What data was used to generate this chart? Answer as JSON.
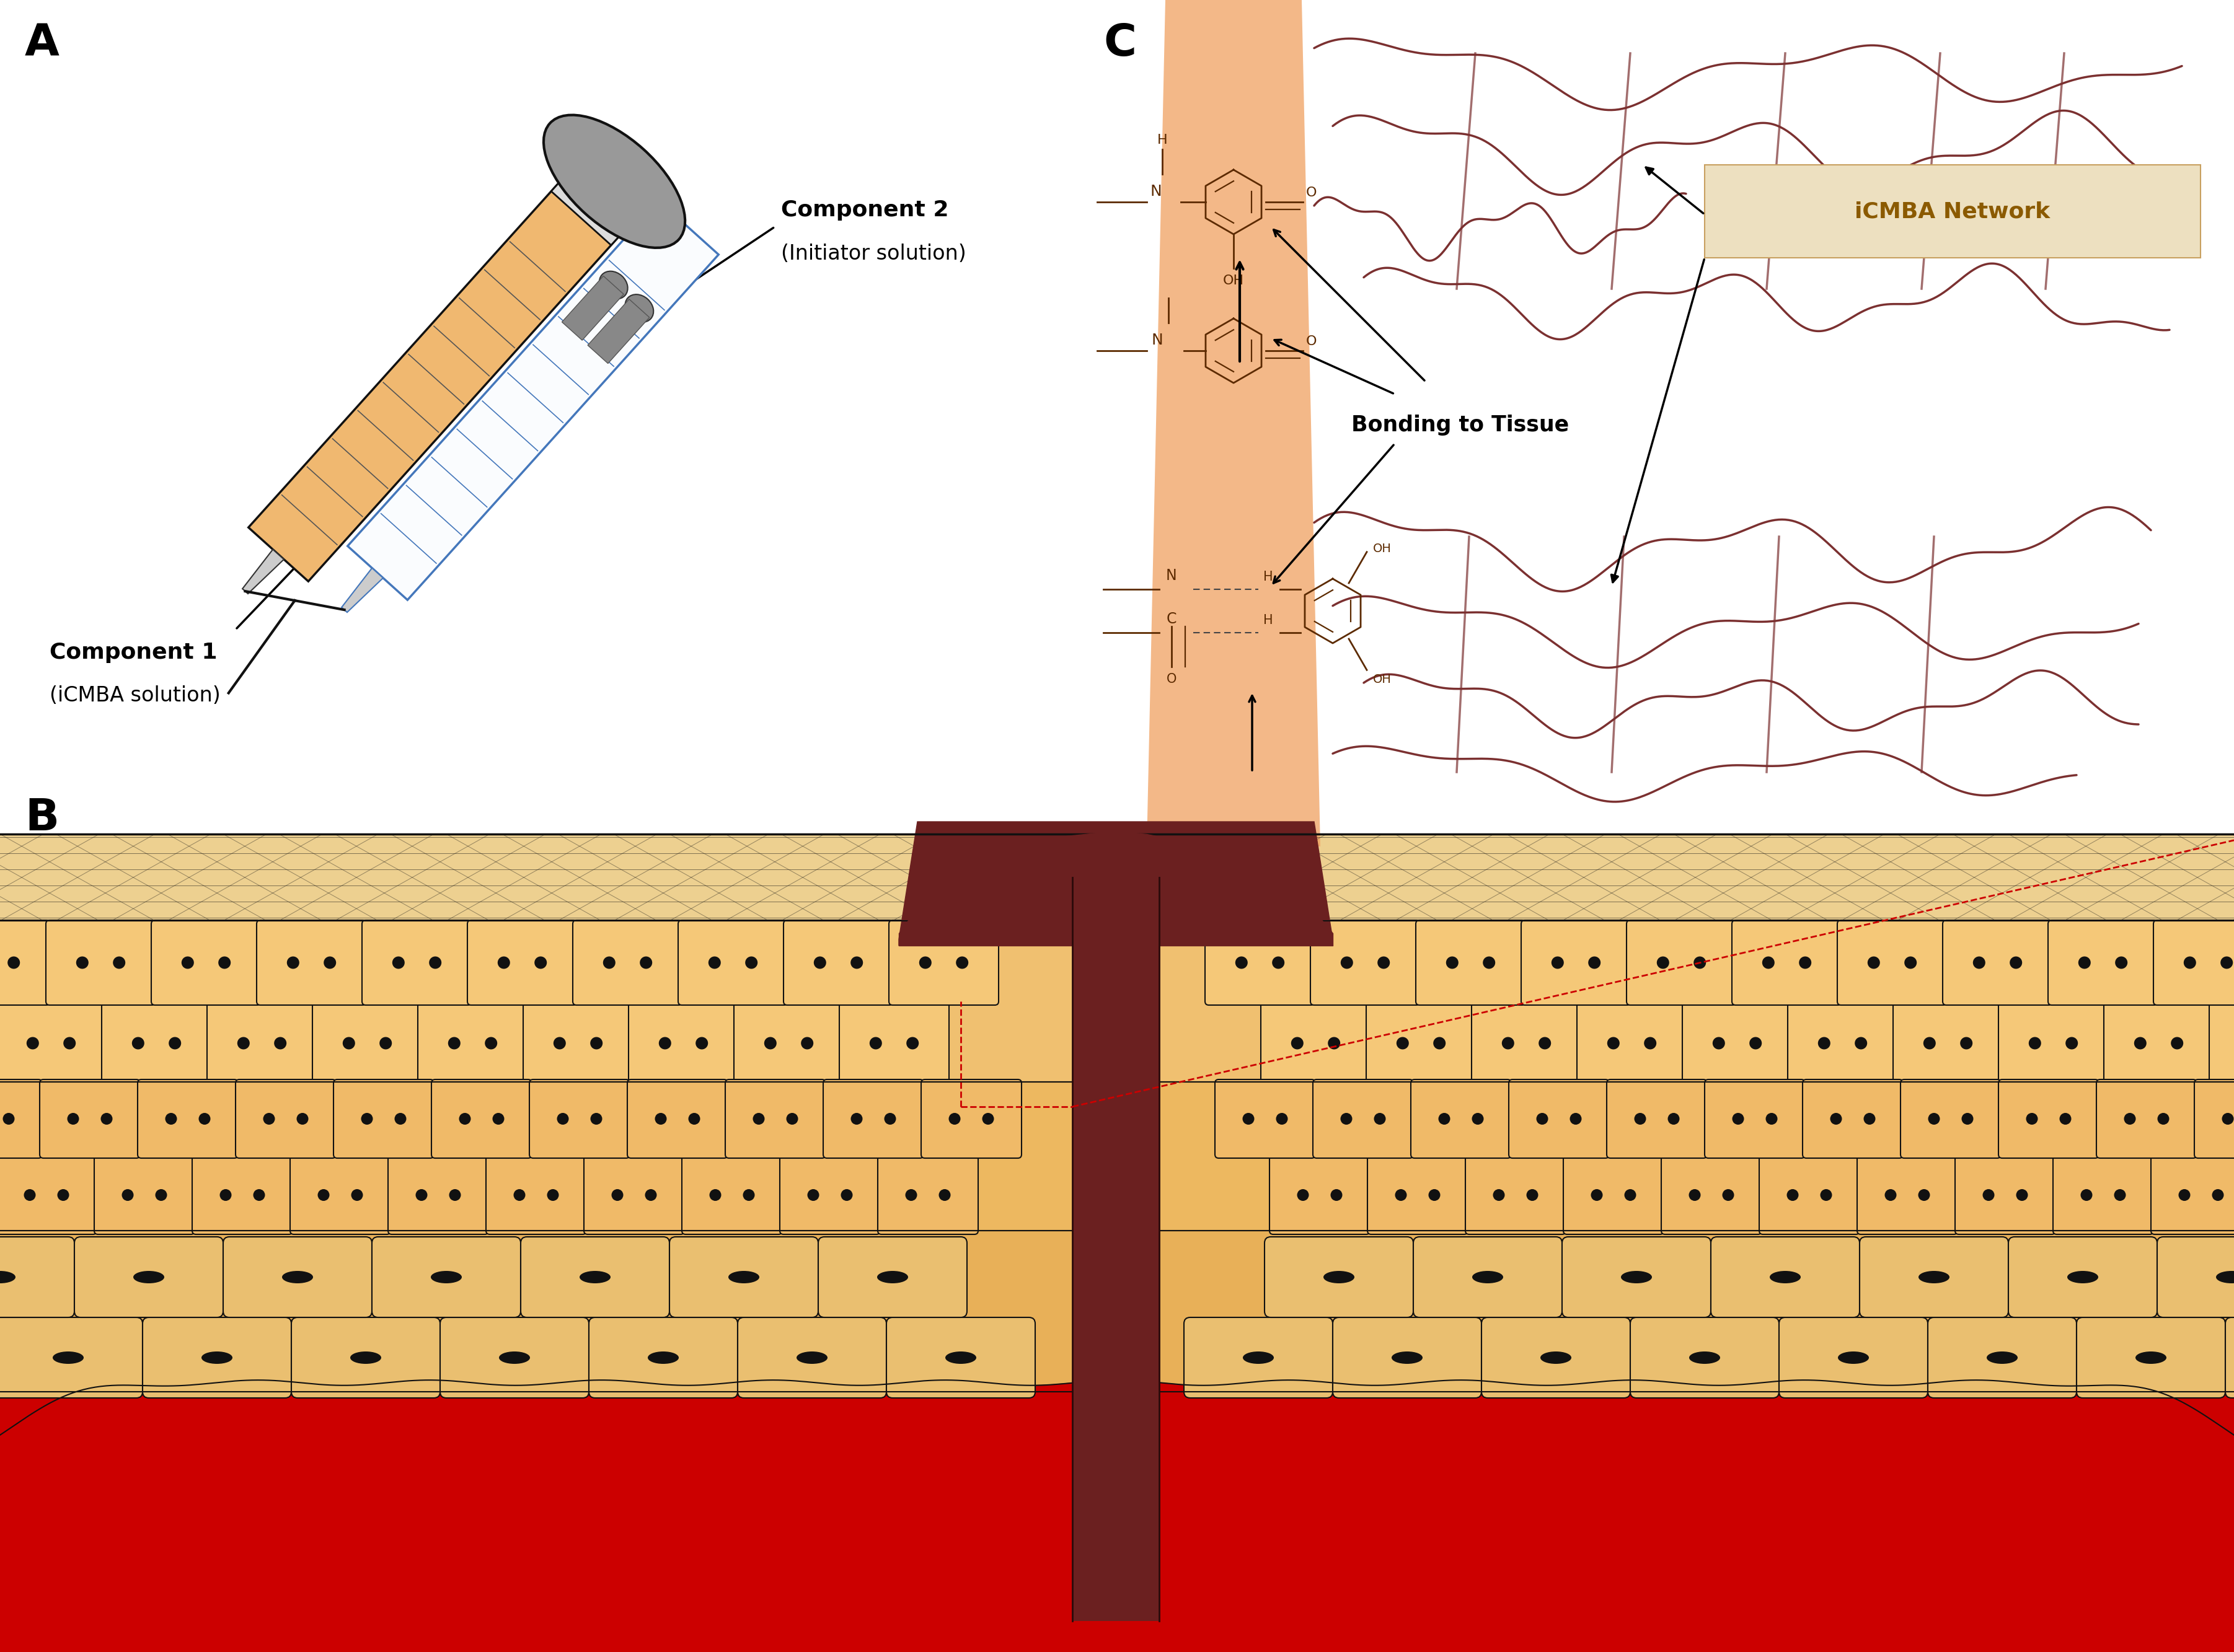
{
  "bg_color": "#ffffff",
  "label_A": "A",
  "label_B": "B",
  "label_C": "C",
  "label_fontsize": 52,
  "label_fontweight": "bold",
  "skin_fibrous_color": "#E8C98A",
  "skin_cell_color": "#F0C07A",
  "skin_cell_edge": "#1a1a1a",
  "skin_deep_color": "#E8B870",
  "blood_color": "#CC0000",
  "glue_color": "#6B2020",
  "orange_band_color": "#F0A060",
  "icmba_network_color": "#7B3030",
  "syringe_orange_fill": "#F0B870",
  "syringe_plunger_color": "#888888",
  "arrow_color": "#000000",
  "text_color": "#000000",
  "icmba_label_bg": "#EDE0C0",
  "icmba_label_color": "#8B5A00",
  "red_dashed_color": "#CC0000",
  "chem_color": "#5C2A00",
  "bond_dash_color": "#444444"
}
